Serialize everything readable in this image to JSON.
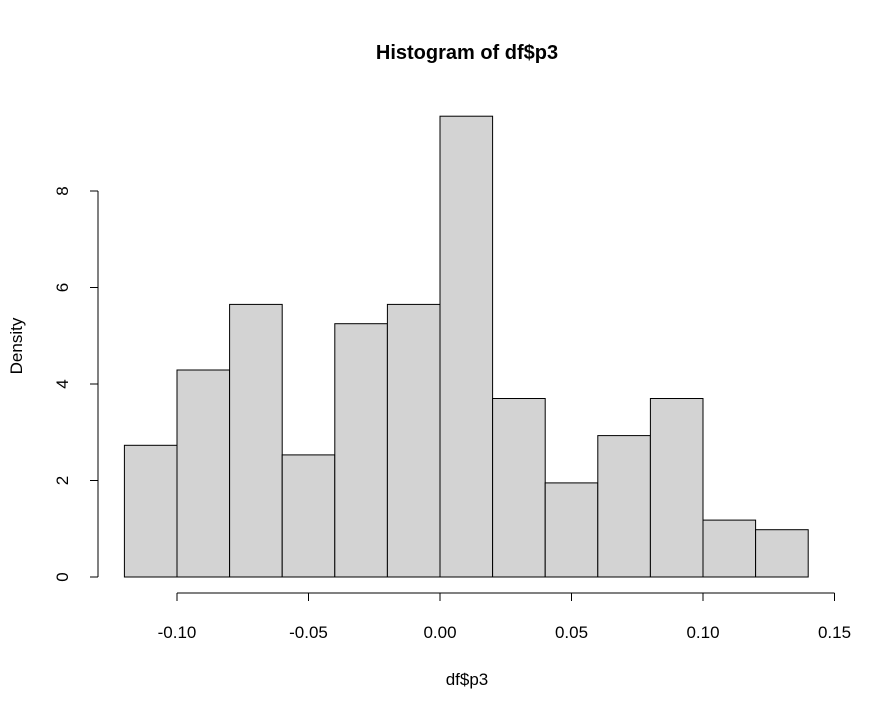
{
  "chart_data": {
    "type": "bar",
    "title": "Histogram of df$p3",
    "xlabel": "df$p3",
    "ylabel": "Density",
    "bins": [
      {
        "x0": -0.12,
        "x1": -0.1,
        "density": 2.73
      },
      {
        "x0": -0.1,
        "x1": -0.08,
        "density": 4.29
      },
      {
        "x0": -0.08,
        "x1": -0.06,
        "density": 5.65
      },
      {
        "x0": -0.06,
        "x1": -0.04,
        "density": 2.53
      },
      {
        "x0": -0.04,
        "x1": -0.02,
        "density": 5.25
      },
      {
        "x0": -0.02,
        "x1": 0.0,
        "density": 5.65
      },
      {
        "x0": 0.0,
        "x1": 0.02,
        "density": 9.55
      },
      {
        "x0": 0.02,
        "x1": 0.04,
        "density": 3.7
      },
      {
        "x0": 0.04,
        "x1": 0.06,
        "density": 1.95
      },
      {
        "x0": 0.06,
        "x1": 0.08,
        "density": 2.93
      },
      {
        "x0": 0.08,
        "x1": 0.1,
        "density": 3.7
      },
      {
        "x0": 0.1,
        "x1": 0.12,
        "density": 1.18
      },
      {
        "x0": 0.12,
        "x1": 0.14,
        "density": 0.98
      }
    ],
    "x_ticks": [
      -0.1,
      -0.05,
      0.0,
      0.05,
      0.1,
      0.15
    ],
    "x_tick_labels": [
      "-0.10",
      "-0.05",
      "0.00",
      "0.05",
      "0.10",
      "0.15"
    ],
    "y_ticks": [
      0,
      2,
      4,
      6,
      8
    ],
    "y_tick_labels": [
      "0",
      "2",
      "4",
      "6",
      "8"
    ],
    "xlim": [
      -0.12,
      0.15
    ],
    "ylim": [
      0,
      9.55
    ],
    "grid": false,
    "colors": {
      "bar_fill": "#d3d3d3",
      "bar_stroke": "#000000"
    }
  }
}
